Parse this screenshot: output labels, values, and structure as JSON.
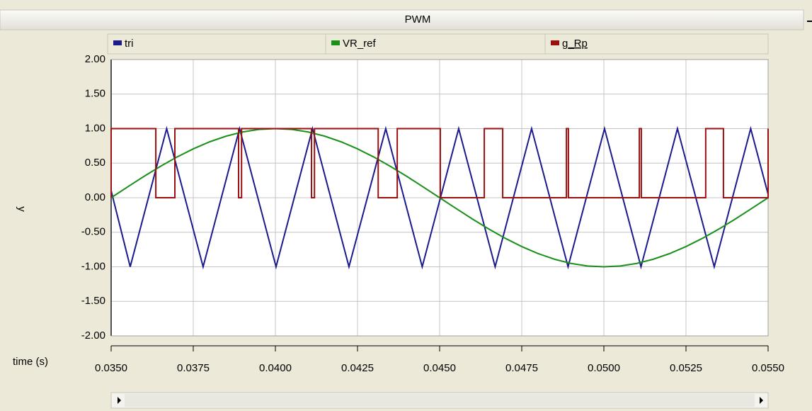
{
  "window_title": "PWM",
  "chart_data": {
    "type": "line",
    "xlabel": "time (s)",
    "ylabel": "y",
    "xlim": [
      0.035,
      0.055
    ],
    "ylim": [
      -2,
      2
    ],
    "xticks": [
      {
        "value": 0.035,
        "label": "0.0350"
      },
      {
        "value": 0.0375,
        "label": "0.0375"
      },
      {
        "value": 0.04,
        "label": "0.0400"
      },
      {
        "value": 0.0425,
        "label": "0.0425"
      },
      {
        "value": 0.045,
        "label": "0.0450"
      },
      {
        "value": 0.0475,
        "label": "0.0475"
      },
      {
        "value": 0.05,
        "label": "0.0500"
      },
      {
        "value": 0.0525,
        "label": "0.0525"
      },
      {
        "value": 0.055,
        "label": "0.0550"
      }
    ],
    "yticks": [
      {
        "value": 2,
        "label": "2.00"
      },
      {
        "value": 1.5,
        "label": "1.50"
      },
      {
        "value": 1,
        "label": "1.00"
      },
      {
        "value": 0.5,
        "label": "0.50"
      },
      {
        "value": 0,
        "label": "0.00"
      },
      {
        "value": -0.5,
        "label": "-0.50"
      },
      {
        "value": -1,
        "label": "-1.00"
      },
      {
        "value": -1.5,
        "label": "-1.50"
      },
      {
        "value": -2,
        "label": "-2.00"
      }
    ],
    "grid": true,
    "legend": "top",
    "series": [
      {
        "name": "tri",
        "color": "#1a1a8c",
        "x": [
          0.035,
          0.03558,
          0.03669,
          0.0378,
          0.03891,
          0.04002,
          0.04113,
          0.04224,
          0.04336,
          0.04447,
          0.04558,
          0.04669,
          0.0478,
          0.04891,
          0.05002,
          0.05113,
          0.05224,
          0.05336,
          0.05447,
          0.055
        ],
        "values": [
          0.1,
          -1,
          1,
          -1,
          1,
          -1,
          1,
          -1,
          1,
          -1,
          1,
          -1,
          1,
          -1,
          1,
          -1,
          1,
          -1,
          1,
          0.05
        ]
      },
      {
        "name": "VR_ref",
        "color": "#1a901a",
        "x": [
          0.035,
          0.0355,
          0.036,
          0.0365,
          0.037,
          0.0375,
          0.038,
          0.0385,
          0.039,
          0.0395,
          0.04,
          0.0405,
          0.041,
          0.0415,
          0.042,
          0.0425,
          0.043,
          0.0435,
          0.044,
          0.0445,
          0.045,
          0.0455,
          0.046,
          0.0465,
          0.047,
          0.0475,
          0.048,
          0.0485,
          0.049,
          0.0495,
          0.05,
          0.0505,
          0.051,
          0.0515,
          0.052,
          0.0525,
          0.053,
          0.0535,
          0.054,
          0.0545,
          0.055
        ],
        "values": [
          0,
          0.156,
          0.309,
          0.454,
          0.588,
          0.707,
          0.809,
          0.891,
          0.951,
          0.988,
          1,
          0.988,
          0.951,
          0.891,
          0.809,
          0.707,
          0.588,
          0.454,
          0.309,
          0.156,
          0,
          -0.156,
          -0.309,
          -0.454,
          -0.588,
          -0.707,
          -0.809,
          -0.891,
          -0.951,
          -0.988,
          -1,
          -0.988,
          -0.951,
          -0.891,
          -0.809,
          -0.707,
          -0.588,
          -0.454,
          -0.309,
          -0.156,
          0
        ]
      },
      {
        "name": "g_Rp",
        "color": "#9a1010",
        "x": [
          0.035,
          0.035,
          0.03636,
          0.03636,
          0.03694,
          0.03694,
          0.03888,
          0.03888,
          0.03897,
          0.03897,
          0.0411,
          0.0411,
          0.04119,
          0.04119,
          0.04313,
          0.04313,
          0.04371,
          0.04371,
          0.04502,
          0.04502,
          0.04636,
          0.04636,
          0.04692,
          0.04692,
          0.04886,
          0.04886,
          0.04892,
          0.04892,
          0.05108,
          0.05108,
          0.05114,
          0.05114,
          0.0531,
          0.0531,
          0.05364,
          0.05364,
          0.055,
          0.055
        ],
        "values": [
          0,
          1,
          1,
          0,
          0,
          1,
          1,
          0,
          0,
          1,
          1,
          0,
          0,
          1,
          1,
          0,
          0,
          1,
          1,
          0,
          0,
          1,
          1,
          0,
          0,
          1,
          1,
          0,
          0,
          1,
          1,
          0,
          0,
          1,
          1,
          0,
          0,
          1
        ]
      }
    ]
  }
}
